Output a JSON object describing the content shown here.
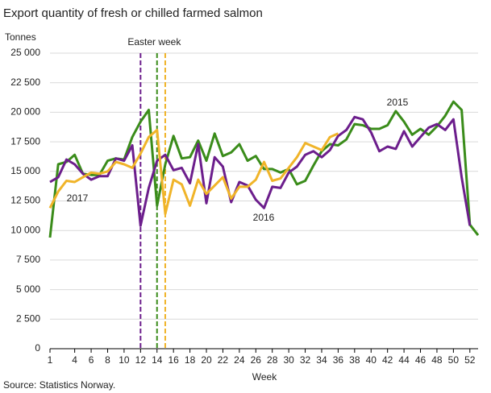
{
  "chart_data": {
    "type": "line",
    "title": "Export quantity of fresh or chilled farmed salmon",
    "y_label": "Tonnes",
    "x_label": "Week",
    "source": "Source: Statistics Norway.",
    "x": [
      1,
      2,
      3,
      4,
      5,
      6,
      7,
      8,
      9,
      10,
      11,
      12,
      13,
      14,
      15,
      16,
      17,
      18,
      19,
      20,
      21,
      22,
      23,
      24,
      25,
      26,
      27,
      28,
      29,
      30,
      31,
      32,
      33,
      34,
      35,
      36,
      37,
      38,
      39,
      40,
      41,
      42,
      43,
      44,
      45,
      46,
      47,
      48,
      49,
      50,
      51,
      52,
      53
    ],
    "series": [
      {
        "name": "2015",
        "color": "#3a8c1a",
        "values": [
          9400,
          15600,
          15800,
          16400,
          14800,
          14700,
          14700,
          15900,
          16100,
          16000,
          17900,
          19200,
          20200,
          12100,
          15600,
          18000,
          16100,
          16200,
          17600,
          15900,
          18200,
          16300,
          16600,
          17300,
          15900,
          16300,
          15200,
          15200,
          14900,
          15200,
          13900,
          14200,
          15500,
          16700,
          17300,
          17200,
          17700,
          19000,
          18900,
          18600,
          18600,
          18900,
          20100,
          19200,
          18100,
          18600,
          18100,
          18800,
          19700,
          20900,
          20200,
          10500,
          9600
        ]
      },
      {
        "name": "2016",
        "color": "#6c1e8c",
        "values": [
          14100,
          14500,
          16000,
          15600,
          14800,
          14300,
          14600,
          14600,
          16100,
          15900,
          17200,
          10400,
          13600,
          15900,
          16400,
          15100,
          15300,
          14000,
          17300,
          12300,
          16200,
          15400,
          12400,
          14100,
          13800,
          12600,
          11900,
          13700,
          13600,
          14900,
          15400,
          16400,
          16700,
          16200,
          16800,
          18000,
          18500,
          19600,
          19400,
          18300,
          16700,
          17100,
          16900,
          18400,
          17100,
          17900,
          18700,
          19000,
          18500,
          19400,
          14500,
          10400,
          null
        ]
      },
      {
        "name": "2017",
        "color": "#f0b429",
        "values": [
          11900,
          13300,
          14200,
          14100,
          14500,
          14900,
          14800,
          15000,
          15800,
          15600,
          15300,
          16500,
          17900,
          18500,
          11400,
          14300,
          13900,
          12100,
          14300,
          13100,
          13800,
          14500,
          12700,
          13700,
          13700,
          14300,
          15800,
          14200,
          14400,
          15300,
          16200,
          17400,
          17100,
          16800,
          17900,
          18200,
          null,
          null,
          null,
          null,
          null,
          null,
          null,
          null,
          null,
          null,
          null,
          null,
          null,
          null,
          null,
          null,
          null
        ]
      }
    ],
    "annotation": {
      "text": "Easter week",
      "weeks": [
        12,
        14,
        15
      ],
      "colors": [
        "#6c1e8c",
        "#3a8c1a",
        "#f0b429"
      ]
    },
    "xlim": [
      1,
      53
    ],
    "ylim": [
      0,
      25000
    ],
    "xticks": [
      1,
      4,
      6,
      8,
      10,
      12,
      14,
      16,
      18,
      20,
      22,
      24,
      26,
      28,
      30,
      32,
      34,
      36,
      38,
      40,
      42,
      44,
      46,
      48,
      50,
      52
    ],
    "yticks": [
      0,
      {
        "value": 2500,
        "label": "2 500"
      },
      {
        "value": 5000,
        "label": "5 000"
      },
      {
        "value": 7500,
        "label": "7 500"
      },
      {
        "value": 10000,
        "label": "10 000"
      },
      {
        "value": 12500,
        "label": "12 500"
      },
      {
        "value": 15000,
        "label": "15 000"
      },
      {
        "value": 17500,
        "label": "17 500"
      },
      {
        "value": 20000,
        "label": "20 000"
      },
      {
        "value": 22500,
        "label": "22 500"
      },
      {
        "value": 25000,
        "label": "25 000"
      }
    ],
    "grid": true
  }
}
